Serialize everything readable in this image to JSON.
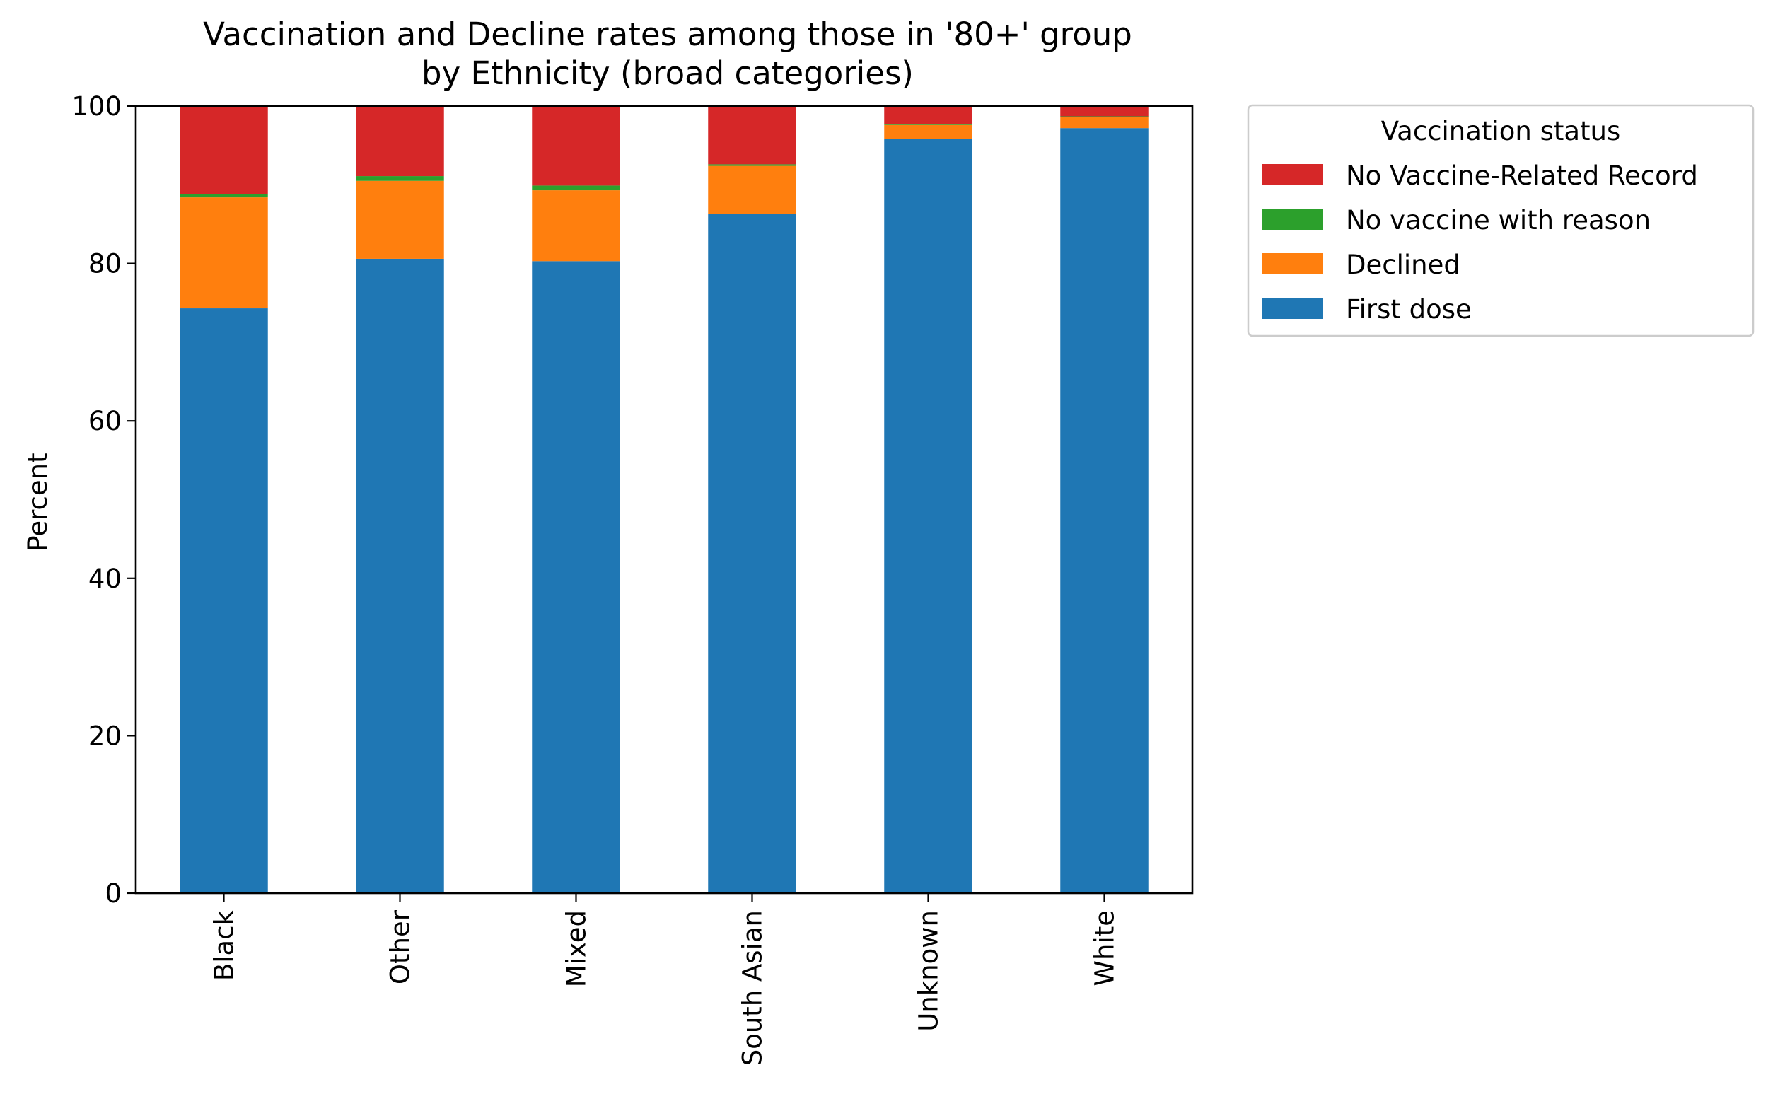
{
  "chart_data": {
    "type": "bar",
    "stacked": true,
    "title_line1": "Vaccination and Decline rates among those in '80+' group",
    "title_line2": "by Ethnicity (broad categories)",
    "xlabel": "",
    "ylabel": "Percent",
    "ylim": [
      0,
      100
    ],
    "yticks": [
      0,
      20,
      40,
      60,
      80,
      100
    ],
    "categories": [
      "Black",
      "Other",
      "Mixed",
      "South Asian",
      "Unknown",
      "White"
    ],
    "series": [
      {
        "name": "First dose",
        "color": "#1f77b4",
        "values": [
          74.3,
          80.6,
          80.3,
          86.3,
          95.8,
          97.2
        ]
      },
      {
        "name": "Declined",
        "color": "#ff7f0e",
        "values": [
          14.1,
          9.9,
          9.0,
          6.1,
          1.8,
          1.4
        ]
      },
      {
        "name": "No vaccine with reason",
        "color": "#2ca02c",
        "values": [
          0.4,
          0.6,
          0.6,
          0.2,
          0.1,
          0.1
        ]
      },
      {
        "name": "No Vaccine-Related Record",
        "color": "#d62728",
        "values": [
          11.2,
          8.9,
          10.1,
          7.4,
          2.3,
          1.3
        ]
      }
    ],
    "legend": {
      "title": "Vaccination status",
      "placement": "outside-right-top",
      "order": [
        "No Vaccine-Related Record",
        "No vaccine with reason",
        "Declined",
        "First dose"
      ]
    }
  }
}
